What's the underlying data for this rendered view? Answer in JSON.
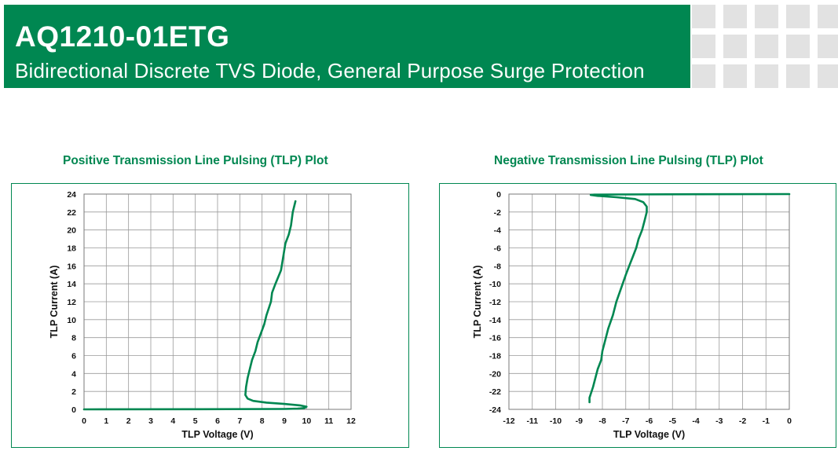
{
  "header": {
    "part_number": "AQ1210-01ETG",
    "description": "Bidirectional Discrete TVS Diode, General Purpose Surge Protection"
  },
  "colors": {
    "brand_green": "#008751",
    "curve": "#008751",
    "grid": "#9a9a9a",
    "deco_gray": "#e2e2e2"
  },
  "chart_data": [
    {
      "type": "line",
      "title": "Positive Transmission Line Pulsing (TLP) Plot",
      "xlabel": "TLP Voltage (V)",
      "ylabel": "TLP Current (A)",
      "xlim": [
        0,
        12
      ],
      "ylim": [
        0,
        24
      ],
      "xticks": [
        0,
        1,
        2,
        3,
        4,
        5,
        6,
        7,
        8,
        9,
        10,
        11,
        12
      ],
      "yticks": [
        0,
        2,
        4,
        6,
        8,
        10,
        12,
        14,
        16,
        18,
        20,
        22,
        24
      ],
      "grid": true,
      "series": [
        {
          "x": [
            0,
            5,
            9.0,
            9.6,
            9.9,
            10.0,
            9.7,
            9.0,
            8.2,
            7.6,
            7.35,
            7.25,
            7.28,
            7.35,
            7.45,
            7.55,
            7.7,
            7.8,
            7.95,
            8.1,
            8.2,
            8.4,
            8.45,
            8.6,
            8.85,
            8.95,
            9.05,
            9.2,
            9.3,
            9.38,
            9.5
          ],
          "y": [
            0,
            0.02,
            0.04,
            0.08,
            0.15,
            0.3,
            0.45,
            0.6,
            0.75,
            0.95,
            1.2,
            1.6,
            2.5,
            3.5,
            4.5,
            5.5,
            6.5,
            7.5,
            8.5,
            9.5,
            10.5,
            12,
            13,
            14,
            15.5,
            17,
            18.5,
            19.5,
            20.5,
            22,
            23.2
          ]
        }
      ]
    },
    {
      "type": "line",
      "title": "Negative Transmission Line Pulsing (TLP) Plot",
      "xlabel": "TLP Voltage (V)",
      "ylabel": "TLP Current (A)",
      "xlim": [
        -12,
        0
      ],
      "ylim": [
        -24,
        0
      ],
      "xticks": [
        -12,
        -11,
        -10,
        -9,
        -8,
        -7,
        -6,
        -5,
        -4,
        -3,
        -2,
        -1,
        0
      ],
      "yticks": [
        0,
        -2,
        -4,
        -6,
        -8,
        -10,
        -12,
        -14,
        -16,
        -18,
        -20,
        -22,
        -24
      ],
      "grid": true,
      "series": [
        {
          "x": [
            0,
            -4,
            -7.5,
            -8.35,
            -8.5,
            -8.2,
            -7.4,
            -6.6,
            -6.25,
            -6.1,
            -6.1,
            -6.2,
            -6.3,
            -6.45,
            -6.55,
            -6.7,
            -6.85,
            -7.0,
            -7.2,
            -7.4,
            -7.55,
            -7.75,
            -7.9,
            -8.0,
            -8.05,
            -8.2,
            -8.3,
            -8.4,
            -8.5,
            -8.55,
            -8.55
          ],
          "y": [
            0,
            -0.02,
            -0.04,
            -0.06,
            -0.1,
            -0.2,
            -0.35,
            -0.55,
            -0.9,
            -1.4,
            -2,
            -3,
            -4,
            -5,
            -6,
            -7,
            -8,
            -9,
            -10.5,
            -12,
            -13.5,
            -15,
            -16.5,
            -17.5,
            -18.5,
            -19.5,
            -20.5,
            -21.5,
            -22.3,
            -22.7,
            -23.2
          ]
        }
      ]
    }
  ]
}
